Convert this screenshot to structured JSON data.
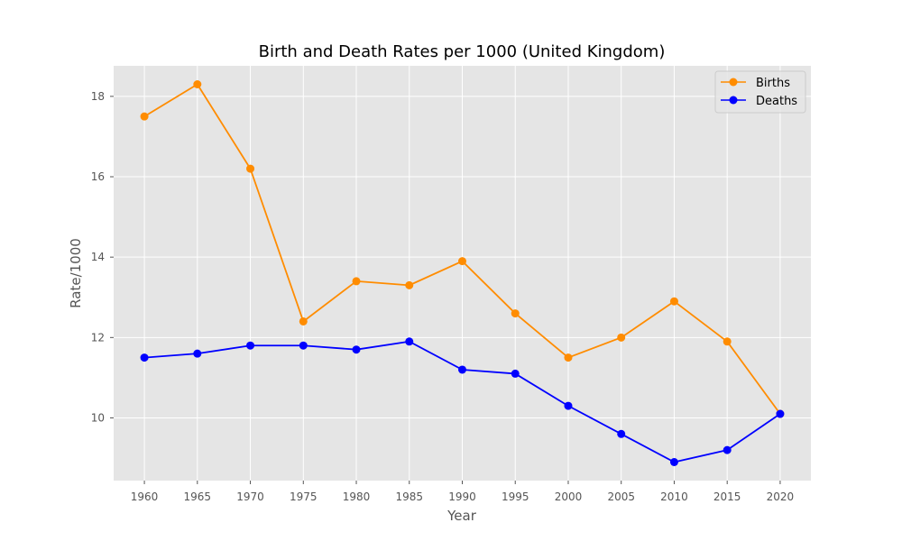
{
  "chart_data": {
    "type": "line",
    "title": "Birth and Death Rates per 1000 (United Kingdom)",
    "xlabel": "Year",
    "ylabel": "Rate/1000",
    "x": [
      1960,
      1965,
      1970,
      1975,
      1980,
      1985,
      1990,
      1995,
      2000,
      2005,
      2010,
      2015,
      2020
    ],
    "x_tick_labels": [
      "1960",
      "1965",
      "1970",
      "1975",
      "1980",
      "1985",
      "1990",
      "1995",
      "2000",
      "2005",
      "2010",
      "2015",
      "2020"
    ],
    "y_ticks": [
      10,
      12,
      14,
      16,
      18
    ],
    "y_tick_labels": [
      "10",
      "12",
      "14",
      "16",
      "18"
    ],
    "xlim": [
      1957.1,
      1922.9
    ],
    "ylim": [
      8.44,
      18.76
    ],
    "grid": true,
    "legend_position": "upper right",
    "series": [
      {
        "name": "Births",
        "color": "#ff8c00",
        "marker": "circle",
        "values": [
          17.5,
          18.3,
          16.2,
          12.4,
          13.4,
          13.3,
          13.9,
          12.6,
          11.5,
          12.0,
          12.9,
          11.9,
          10.1
        ]
      },
      {
        "name": "Deaths",
        "color": "#0000ff",
        "marker": "circle",
        "values": [
          11.5,
          11.6,
          11.8,
          11.8,
          11.7,
          11.9,
          11.2,
          11.1,
          10.3,
          9.6,
          8.9,
          9.2,
          10.1
        ]
      }
    ],
    "plot_background": "#e5e5e5",
    "grid_color": "#ffffff"
  }
}
